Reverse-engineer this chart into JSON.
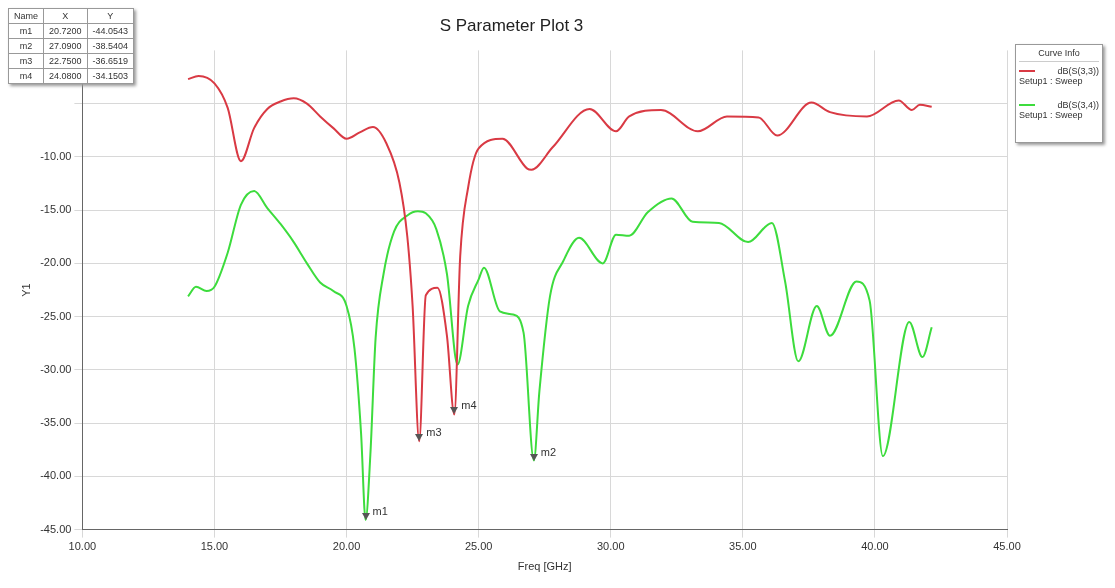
{
  "chart_data": {
    "type": "line",
    "title": "S Parameter Plot 3",
    "xlabel": "Freq [GHz]",
    "ylabel": "Y1",
    "legend_title": "Curve Info",
    "legend": "top right",
    "grid": true,
    "marker": "none",
    "xlim": [
      10,
      45
    ],
    "xticks": [
      {
        "value": 10,
        "label": "10.00"
      },
      {
        "value": 15,
        "label": "15.00"
      },
      {
        "value": 20,
        "label": "20.00"
      },
      {
        "value": 25,
        "label": "25.00"
      },
      {
        "value": 30,
        "label": "30.00"
      },
      {
        "value": 35,
        "label": "35.00"
      },
      {
        "value": 40,
        "label": "40.00"
      },
      {
        "value": 45,
        "label": "45.00"
      }
    ],
    "ylim": [
      -45,
      0
    ],
    "yticks": [
      {
        "value": -45,
        "label": "-45.00"
      },
      {
        "value": -40,
        "label": "-40.00"
      },
      {
        "value": -35,
        "label": "-35.00"
      },
      {
        "value": -30,
        "label": "-30.00"
      },
      {
        "value": -25,
        "label": "-25.00"
      },
      {
        "value": -20,
        "label": "-20.00"
      },
      {
        "value": -15,
        "label": "-15.00"
      },
      {
        "value": -10,
        "label": "-10.00"
      },
      {
        "value": -5,
        "label": null
      }
    ],
    "series": [
      {
        "name": "dB(S(3,3))\nSetup1 : Sweep",
        "color": "#d93a44",
        "x": [
          14,
          14.4,
          15,
          15.5,
          16,
          16.5,
          17,
          17.5,
          18,
          18.5,
          19,
          19.5,
          20,
          20.5,
          21,
          21.5,
          22,
          22.3,
          22.5,
          22.75,
          23,
          23.44,
          23.8,
          24.08,
          24.3,
          24.6,
          25,
          25.9,
          26.84,
          27,
          27.8,
          29.2,
          30.2,
          30.7,
          31.9,
          33.3,
          34.4,
          35.6,
          36.3,
          37.6,
          38.3,
          39.7,
          40.9,
          41.4,
          41.7,
          42.15
        ],
        "values": [
          -2.7,
          -2.4,
          -3.1,
          -5.4,
          -10.4,
          -7.3,
          -5.5,
          -4.8,
          -4.5,
          -5.0,
          -6.2,
          -7.3,
          -8.3,
          -7.7,
          -7.2,
          -8.7,
          -12.4,
          -17.5,
          -24,
          -36.7,
          -23,
          -22.3,
          -26.8,
          -34.2,
          -19.4,
          -12.9,
          -9.2,
          -8.3,
          -11.1,
          -11.2,
          -9.1,
          -5.5,
          -7.6,
          -6.2,
          -5.6,
          -7.6,
          -6.2,
          -6.3,
          -8.0,
          -4.9,
          -5.8,
          -6.2,
          -4.7,
          -5.6,
          -5.1,
          -5.3
        ]
      },
      {
        "name": "dB(S(3,4))\nSetup1 : Sweep",
        "color": "#3ddc3d",
        "x": [
          14,
          14.3,
          14.7,
          15,
          15.5,
          16,
          16.5,
          17,
          17.5,
          18,
          18.5,
          19,
          19.5,
          20,
          20.3,
          20.55,
          20.72,
          20.9,
          21.1,
          21.4,
          21.8,
          22.3,
          22.7,
          23,
          23.4,
          23.8,
          24.2,
          24.6,
          25,
          25.2,
          25.8,
          26.3,
          26.7,
          27.09,
          27.3,
          27.7,
          28.2,
          28.8,
          29.7,
          30.2,
          30.7,
          31.4,
          32.3,
          33.1,
          34.1,
          35.2,
          36.1,
          36.6,
          37.1,
          37.8,
          38.3,
          39.3,
          39.8,
          40.3,
          41.3,
          41.8,
          42.15
        ],
        "values": [
          -23.1,
          -22.2,
          -22.6,
          -22.2,
          -19,
          -14.5,
          -13.2,
          -14.8,
          -16.3,
          -18,
          -20,
          -21.8,
          -22.6,
          -24,
          -28,
          -36,
          -44.1,
          -38,
          -27,
          -21,
          -17,
          -15.5,
          -15.1,
          -15.3,
          -16.8,
          -21,
          -29.5,
          -24,
          -21.5,
          -20.4,
          -24.5,
          -24.8,
          -26.5,
          -38.5,
          -32,
          -23.1,
          -19.8,
          -17.6,
          -20,
          -17.3,
          -17.4,
          -15.2,
          -13.9,
          -16.1,
          -16.2,
          -18,
          -16.2,
          -21.7,
          -29.2,
          -24,
          -26.8,
          -21.7,
          -23.5,
          -38.1,
          -25.5,
          -28.8,
          -26
        ]
      }
    ],
    "annotations": [
      "Name",
      "X",
      "Y",
      "m1",
      "20.7200",
      "-44.0543",
      "m2",
      "27.0900",
      "-38.5404",
      "m3",
      "22.7500",
      "-36.6519",
      "m4",
      "24.0800",
      "-34.1503",
      {
        "text": "m1",
        "x": 20.72,
        "y": -44.0543
      },
      {
        "text": "m2",
        "x": 27.09,
        "y": -38.5404
      },
      {
        "text": "m3",
        "x": 22.75,
        "y": -36.6519
      },
      {
        "text": "m4",
        "x": 24.08,
        "y": -34.1503
      }
    ]
  }
}
